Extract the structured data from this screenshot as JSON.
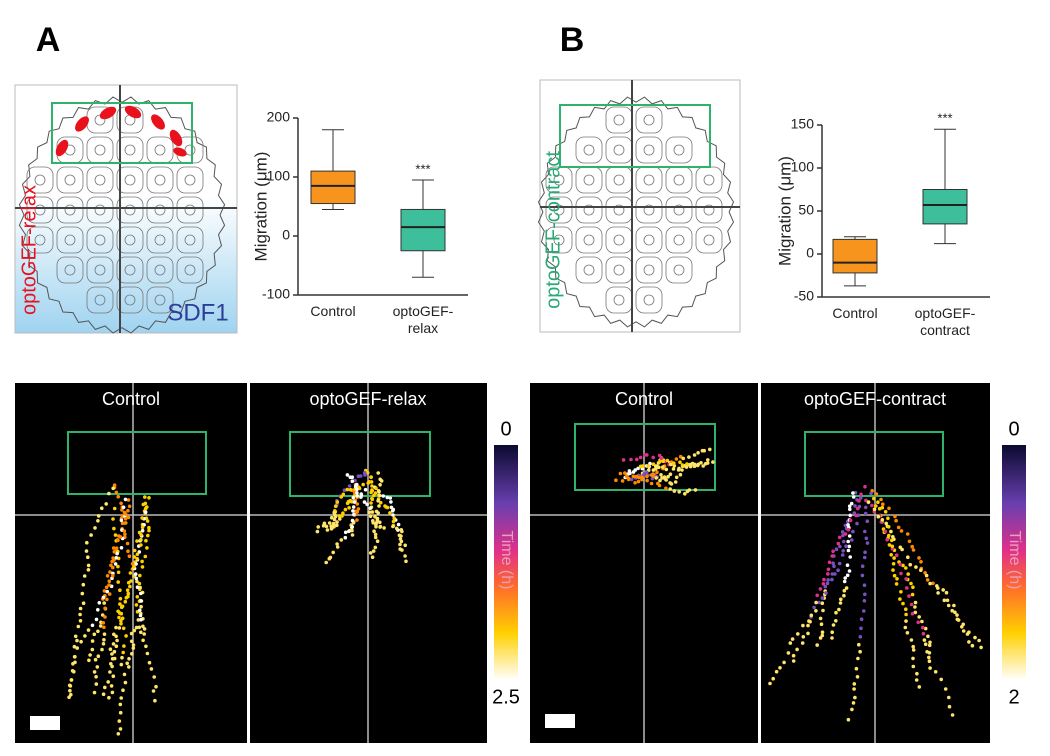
{
  "chart_data": [
    {
      "type": "box",
      "ylabel": "Migration (μm)",
      "categories": [
        "Control",
        "optoGEF-relax"
      ],
      "boxes": [
        {
          "min": 45,
          "q1": 55,
          "median": 85,
          "q3": 110,
          "max": 180
        },
        {
          "min": -70,
          "q1": -25,
          "median": 15,
          "q3": 45,
          "max": 95
        }
      ],
      "colors": [
        "#f7941d",
        "#3cbf9a"
      ],
      "significance": [
        null,
        "***"
      ],
      "ylim": [
        -100,
        200
      ],
      "yticks": [
        -100,
        0,
        100,
        200
      ]
    },
    {
      "type": "box",
      "ylabel": "Migration (μm)",
      "categories": [
        "Control",
        "optoGEF-contract"
      ],
      "boxes": [
        {
          "min": -37,
          "q1": -22,
          "median": -10,
          "q3": 17,
          "max": 20
        },
        {
          "min": 12,
          "q1": 35,
          "median": 57,
          "q3": 75,
          "max": 145
        }
      ],
      "colors": [
        "#f7941d",
        "#3cbf9a"
      ],
      "significance": [
        null,
        "***"
      ],
      "ylim": [
        -50,
        150
      ],
      "yticks": [
        -50,
        0,
        50,
        100,
        150
      ]
    }
  ],
  "figure": {
    "panel_labels": [
      "A",
      "B"
    ],
    "diagram_a": {
      "label": "optoGEF-relax",
      "cue": "SDF1"
    },
    "diagram_b": {
      "label": "optoGEF-contract"
    },
    "images_a": [
      "Control",
      "optoGEF-relax"
    ],
    "images_b": [
      "Control",
      "optoGEF-contract"
    ],
    "colorbar_a": {
      "top": "0",
      "title": "Time (h)",
      "bottom": "2.5"
    },
    "colorbar_b": {
      "top": "0",
      "title": "Time (h)",
      "bottom": "2"
    }
  }
}
